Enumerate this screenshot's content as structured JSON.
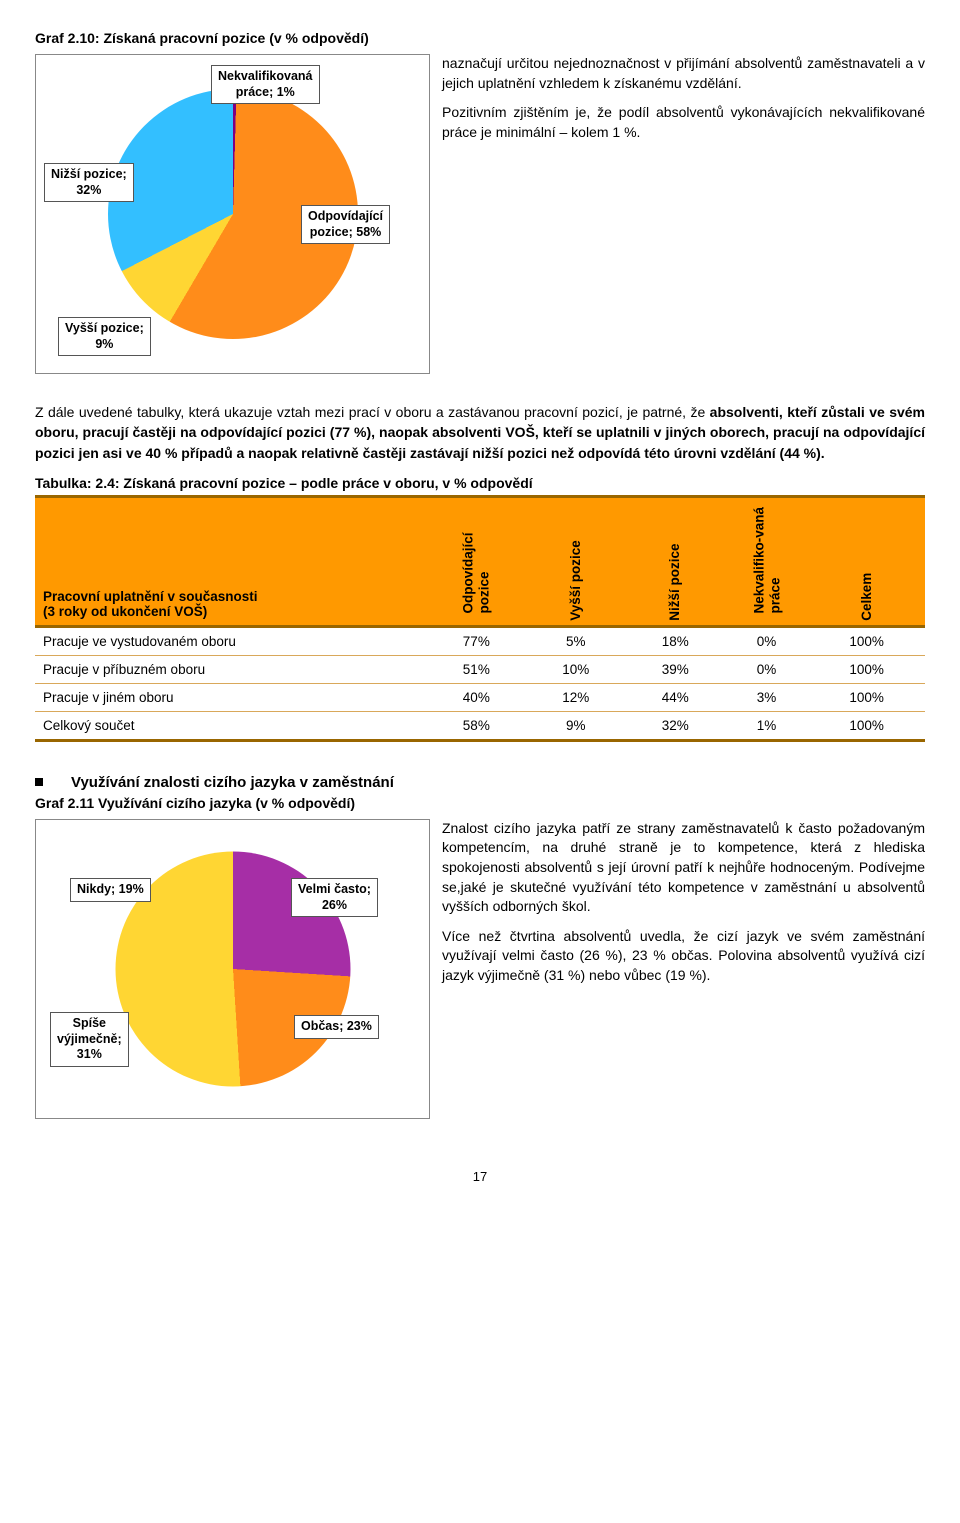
{
  "chart1": {
    "title": "Graf 2.10: Získaná pracovní pozice (v % odpovědí)",
    "type": "pie",
    "background_color": "#ffffff",
    "border_color": "#888888",
    "slices": [
      {
        "label": "Nekvalifikovaná\npráce; 1%",
        "value": 1,
        "color": "#800080"
      },
      {
        "label": "Odpovídající\npozice; 58%",
        "value": 58,
        "color": "#ff8c1a"
      },
      {
        "label": "Vyšší pozice;\n9%",
        "value": 9,
        "color": "#ffd633"
      },
      {
        "label": "Nižší pozice;\n32%",
        "value": 32,
        "color": "#33bfff"
      }
    ],
    "label_fontsize": 12.5,
    "label_fontweight": "bold"
  },
  "side_text1": {
    "p1": "naznačují určitou nejednoznačnost v přijímání absolventů zaměstnavateli a v jejich uplatnění vzhledem k získanému vzdělání.",
    "p2": "Pozitivním zjištěním je, že podíl absolventů vykonávajících nekvalifikované práce je minimální – kolem 1 %."
  },
  "body_para": {
    "pre": "Z dále uvedené tabulky, která ukazuje vztah mezi prací v oboru a zastávanou pracovní pozicí, je patrné, že ",
    "bold": "absolventi, kteří zůstali ve svém oboru, pracují častěji na odpovídající pozici (77 %), naopak absolventi VOŠ, kteří se uplatnili v jiných oborech, pracují na odpovídající pozici jen asi ve 40 % případů a naopak relativně častěji zastávají nižší pozici než odpovídá této úrovni vzdělání (44 %)."
  },
  "table": {
    "caption": "Tabulka: 2.4: Získaná pracovní pozice – podle práce v oboru, v % odpovědí",
    "header_bg": "#ff9900",
    "border_color": "#996600",
    "row_border_color": "#d9a85a",
    "row_header_label": "Pracovní uplatnění v současnosti\n(3 roky od ukončení VOŠ)",
    "columns": [
      "Odpovídající pozice",
      "Vyšší pozice",
      "Nižší pozice",
      "Nekvalifiko-vaná práce",
      "Celkem"
    ],
    "rows": [
      {
        "label": "Pracuje ve vystudovaném oboru",
        "cells": [
          "77%",
          "5%",
          "18%",
          "0%",
          "100%"
        ]
      },
      {
        "label": "Pracuje v příbuzném oboru",
        "cells": [
          "51%",
          "10%",
          "39%",
          "0%",
          "100%"
        ]
      },
      {
        "label": "Pracuje v jiném oboru",
        "cells": [
          "40%",
          "12%",
          "44%",
          "3%",
          "100%"
        ]
      },
      {
        "label": "Celkový součet",
        "cells": [
          "58%",
          "9%",
          "32%",
          "1%",
          "100%"
        ]
      }
    ]
  },
  "section2_heading": "Využívání znalosti cizího jazyka v zaměstnání",
  "chart2": {
    "title": "Graf 2.11 Využívání cizího jazyka (v % odpovědí)",
    "type": "pie",
    "background_color": "#ffffff",
    "border_color": "#888888",
    "slices": [
      {
        "label": "Nikdy; 19%",
        "value": 19,
        "color": "#33bfff"
      },
      {
        "label": "Velmi často;\n26%",
        "value": 26,
        "color": "#a62ea6"
      },
      {
        "label": "Občas; 23%",
        "value": 23,
        "color": "#ff8c1a"
      },
      {
        "label": "Spíše\nvýjimečně;\n31%",
        "value": 31,
        "color": "#ffd633"
      }
    ],
    "label_fontsize": 12.5,
    "label_fontweight": "bold"
  },
  "side_text2": {
    "p1": "Znalost cizího jazyka patří ze strany zaměstnavatelů k často požadovaným kompetencím, na druhé straně je to kompetence, která z hlediska spokojenosti absolventů s její úrovní patří k nejhůře hodnoceným. Podívejme se,jaké je skutečné využívání této kompetence v zaměstnání u absolventů vyšších odborných škol.",
    "p2": "Více než čtvrtina absolventů uvedla, že cizí jazyk ve svém zaměstnání využívají velmi často (26 %), 23 % občas. Polovina absolventů využívá cizí jazyk výjimečně (31 %) nebo vůbec (19 %)."
  },
  "page_number": "17"
}
